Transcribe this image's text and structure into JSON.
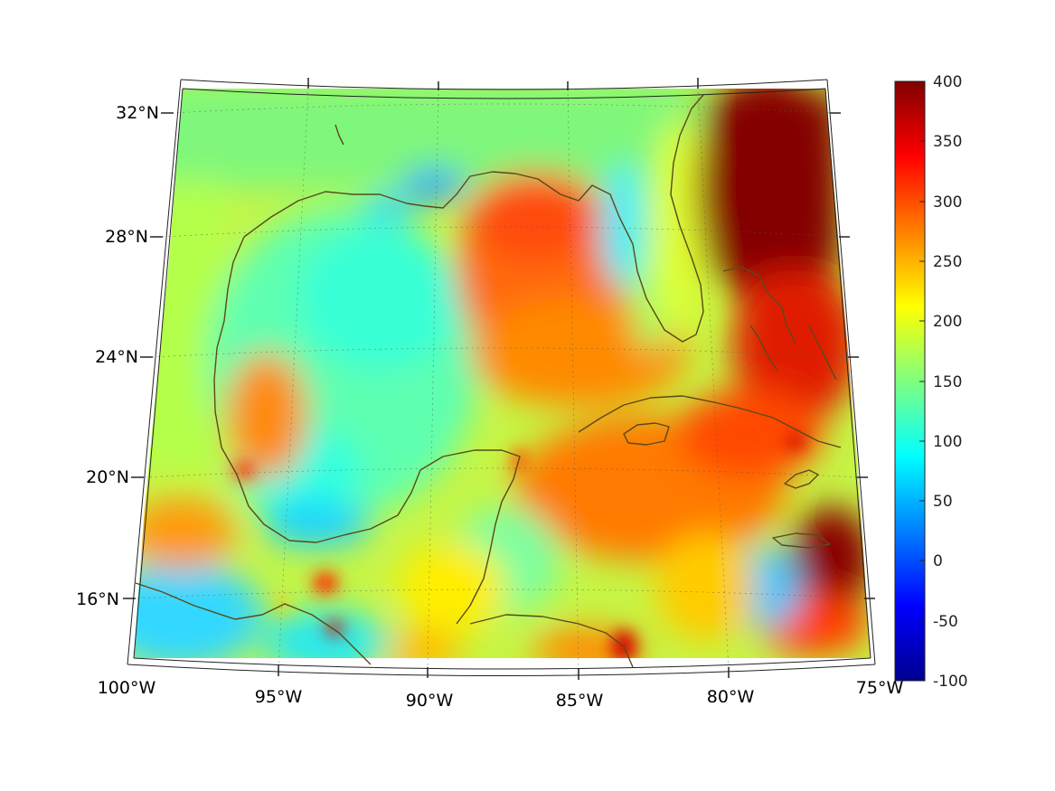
{
  "map": {
    "lat_labels": [
      "32°N",
      "28°N",
      "24°N",
      "20°N",
      "16°N"
    ],
    "lon_labels": [
      "100°W",
      "95°W",
      "90°W",
      "85°W",
      "80°W",
      "75°W"
    ],
    "colorbar": {
      "ticks": [
        "400",
        "350",
        "300",
        "250",
        "200",
        "150",
        "100",
        "50",
        "0",
        "-50",
        "-100"
      ],
      "min": -100,
      "max": 400,
      "colormap": "jet",
      "colors": [
        "#00008f",
        "#0000ff",
        "#00ffff",
        "#ffff00",
        "#ff0000",
        "#800000"
      ]
    },
    "coastline_color": "#5a4a1a",
    "land_shading": "data field continues over land"
  }
}
